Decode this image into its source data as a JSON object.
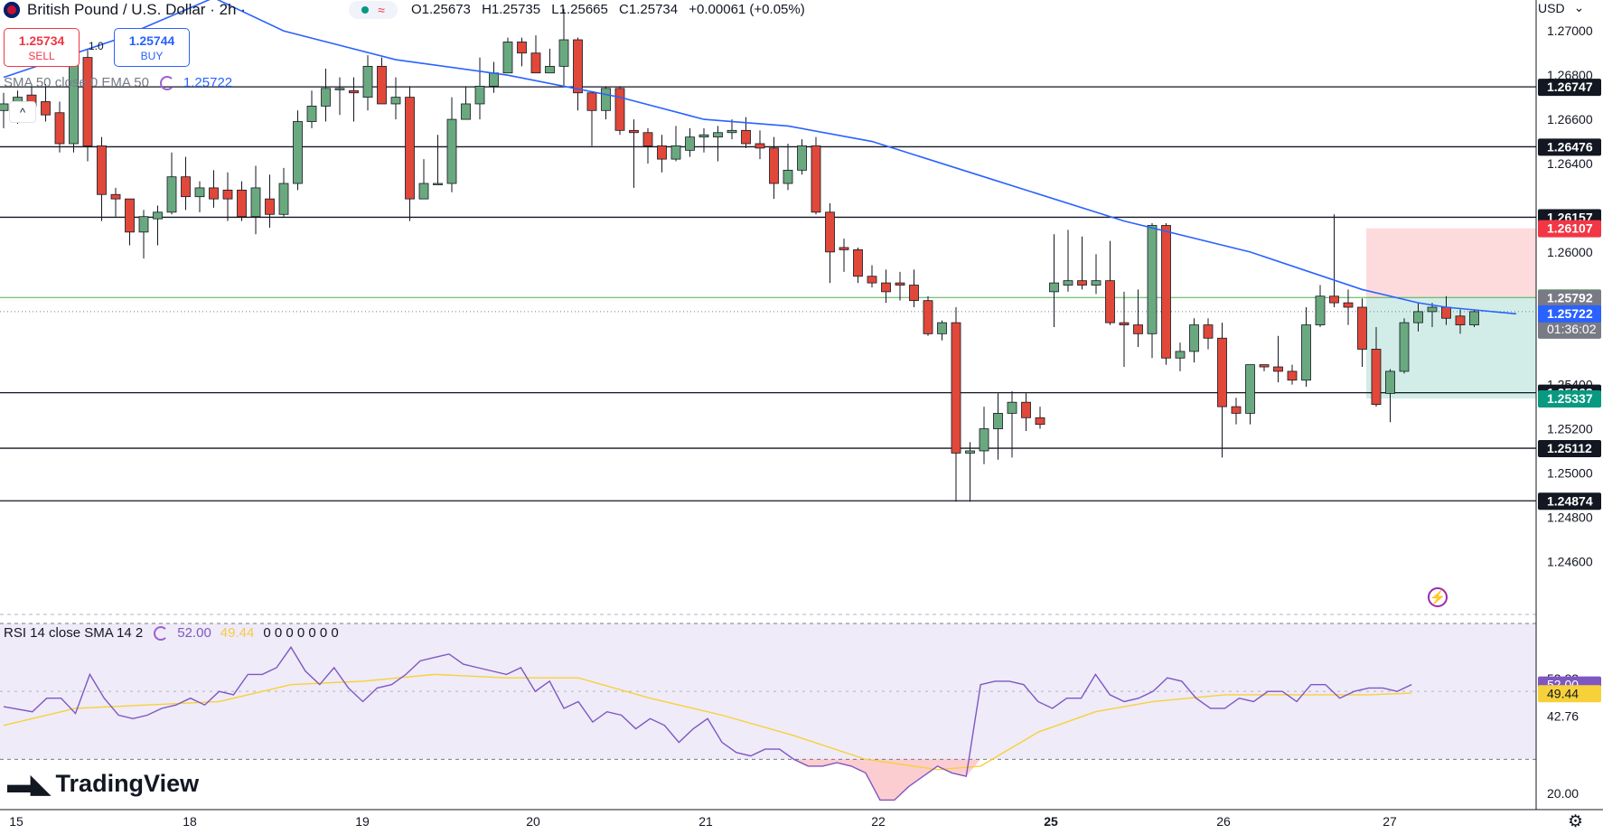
{
  "header": {
    "symbol": "British Pound / U.S. Dollar · 2h ·",
    "open": "O1.25673",
    "high": "H1.25735",
    "low": "L1.25665",
    "close": "C1.25734",
    "change": "+0.00061 (+0.05%)",
    "pill_glyph": "≈",
    "sell_price": "1.25734",
    "sell_label": "SELL",
    "buy_price": "1.25744",
    "buy_label": "BUY",
    "qty": "1.0",
    "currency": "USD",
    "collapse_glyph": "^"
  },
  "indicators": {
    "sma_label": "SMA 50 close 0 EMA 50",
    "sma_value": "1.25722",
    "rsi_label": "RSI 14 close SMA 14 2",
    "rsi_value": "52.00",
    "rsi_sma_value": "49.44",
    "rsi_zeros": "0 0 0 0 0 0 0"
  },
  "brand": "TradingView",
  "chart_data": {
    "type": "candlestick",
    "price_axis_ticks": [
      "1.27000",
      "1.26800",
      "1.26600",
      "1.26400",
      "1.26000",
      "1.25400",
      "1.25200",
      "1.25000",
      "1.24800",
      "1.24600"
    ],
    "price_ylim": [
      1.2436,
      1.2714
    ],
    "time_labels": [
      "15",
      "18",
      "19",
      "20",
      "21",
      "22",
      "25",
      "26",
      "27"
    ],
    "horizontal_levels": [
      1.26747,
      1.26476,
      1.26157,
      1.25363,
      1.25112,
      1.24874
    ],
    "price_tags": [
      {
        "value": 1.26747,
        "text": "1.26747",
        "color": "#131722"
      },
      {
        "value": 1.26476,
        "text": "1.26476",
        "color": "#131722"
      },
      {
        "value": 1.26157,
        "text": "1.26157",
        "color": "#131722"
      },
      {
        "value": 1.26107,
        "text": "1.26107",
        "color": "#f23645"
      },
      {
        "value": 1.25794,
        "text": "1.25794",
        "color": "#4caf50"
      },
      {
        "value": 1.25792,
        "text": "1.25792",
        "color": "#787b86"
      },
      {
        "value": 1.25734,
        "text": "1.25734",
        "color": "#787b86",
        "sub": "01:36:02"
      },
      {
        "value": 1.25722,
        "text": "1.25722",
        "color": "#2962ff"
      },
      {
        "value": 1.25363,
        "text": "1.25363",
        "color": "#131722"
      },
      {
        "value": 1.25337,
        "text": "1.25337",
        "color": "#089981"
      },
      {
        "value": 1.25112,
        "text": "1.25112",
        "color": "#131722"
      },
      {
        "value": 1.24874,
        "text": "1.24874",
        "color": "#131722"
      }
    ],
    "position_box": {
      "stop": 1.26107,
      "entry": 1.25794,
      "target": 1.25337
    },
    "candles": [
      [
        1.2664,
        1.2672,
        1.2656,
        1.2667
      ],
      [
        1.2667,
        1.2673,
        1.2658,
        1.267
      ],
      [
        1.2671,
        1.2676,
        1.2664,
        1.2666
      ],
      [
        1.2668,
        1.2676,
        1.2659,
        1.2662
      ],
      [
        1.2663,
        1.2668,
        1.2645,
        1.2649
      ],
      [
        1.2649,
        1.269,
        1.2645,
        1.2688
      ],
      [
        1.2688,
        1.2692,
        1.2641,
        1.2648
      ],
      [
        1.2648,
        1.2652,
        1.2614,
        1.2626
      ],
      [
        1.2626,
        1.2629,
        1.2616,
        1.2624
      ],
      [
        1.2624,
        1.2624,
        1.2603,
        1.2609
      ],
      [
        1.2609,
        1.2619,
        1.2597,
        1.2616
      ],
      [
        1.2615,
        1.2621,
        1.2603,
        1.2618
      ],
      [
        1.2618,
        1.2645,
        1.2617,
        1.2634
      ],
      [
        1.2634,
        1.2643,
        1.2619,
        1.2625
      ],
      [
        1.2625,
        1.2632,
        1.2618,
        1.2629
      ],
      [
        1.2629,
        1.2637,
        1.262,
        1.2624
      ],
      [
        1.2628,
        1.2636,
        1.2614,
        1.2624
      ],
      [
        1.2628,
        1.2632,
        1.2614,
        1.2616
      ],
      [
        1.2616,
        1.2639,
        1.2608,
        1.2629
      ],
      [
        1.2624,
        1.2635,
        1.2611,
        1.2617
      ],
      [
        1.2617,
        1.2638,
        1.2616,
        1.2631
      ],
      [
        1.2631,
        1.2664,
        1.2628,
        1.2659
      ],
      [
        1.2659,
        1.2673,
        1.2656,
        1.2666
      ],
      [
        1.2666,
        1.2683,
        1.2659,
        1.2674
      ],
      [
        1.2674,
        1.2679,
        1.2662,
        1.2674
      ],
      [
        1.2673,
        1.2679,
        1.2659,
        1.2672
      ],
      [
        1.267,
        1.2689,
        1.2664,
        1.2684
      ],
      [
        1.2684,
        1.2688,
        1.2667,
        1.2667
      ],
      [
        1.2667,
        1.2679,
        1.266,
        1.267
      ],
      [
        1.267,
        1.2675,
        1.2614,
        1.2624
      ],
      [
        1.2624,
        1.2642,
        1.2624,
        1.2631
      ],
      [
        1.2631,
        1.2653,
        1.2631,
        1.2631
      ],
      [
        1.2631,
        1.267,
        1.2627,
        1.266
      ],
      [
        1.266,
        1.2675,
        1.266,
        1.2667
      ],
      [
        1.2667,
        1.2688,
        1.266,
        1.2675
      ],
      [
        1.2675,
        1.2686,
        1.2672,
        1.2681
      ],
      [
        1.2681,
        1.2697,
        1.2681,
        1.2695
      ],
      [
        1.2695,
        1.2697,
        1.2684,
        1.269
      ],
      [
        1.269,
        1.2698,
        1.2682,
        1.2681
      ],
      [
        1.2681,
        1.2692,
        1.2681,
        1.2684
      ],
      [
        1.2684,
        1.271,
        1.2675,
        1.2696
      ],
      [
        1.2696,
        1.2697,
        1.2664,
        1.2672
      ],
      [
        1.2672,
        1.2672,
        1.2648,
        1.2664
      ],
      [
        1.2664,
        1.2675,
        1.266,
        1.2674
      ],
      [
        1.2674,
        1.2675,
        1.2653,
        1.2655
      ],
      [
        1.2655,
        1.266,
        1.2629,
        1.2654
      ],
      [
        1.2654,
        1.2656,
        1.264,
        1.2648
      ],
      [
        1.2648,
        1.2653,
        1.2636,
        1.2642
      ],
      [
        1.2642,
        1.2657,
        1.2641,
        1.2648
      ],
      [
        1.2646,
        1.2656,
        1.2643,
        1.2652
      ],
      [
        1.2652,
        1.2656,
        1.2645,
        1.2653
      ],
      [
        1.2652,
        1.2657,
        1.2641,
        1.2654
      ],
      [
        1.2654,
        1.266,
        1.2651,
        1.2655
      ],
      [
        1.2655,
        1.2661,
        1.2647,
        1.2649
      ],
      [
        1.2649,
        1.2655,
        1.2642,
        1.2647
      ],
      [
        1.2647,
        1.2652,
        1.2624,
        1.2631
      ],
      [
        1.2631,
        1.2649,
        1.2628,
        1.2637
      ],
      [
        1.2637,
        1.2651,
        1.2635,
        1.2648
      ],
      [
        1.2648,
        1.2652,
        1.2617,
        1.2618
      ],
      [
        1.2618,
        1.2622,
        1.2586,
        1.26
      ],
      [
        1.2602,
        1.2606,
        1.2591,
        1.2601
      ],
      [
        1.2601,
        1.2602,
        1.2586,
        1.2589
      ],
      [
        1.2589,
        1.2594,
        1.2584,
        1.2586
      ],
      [
        1.2586,
        1.2592,
        1.2577,
        1.2582
      ],
      [
        1.2586,
        1.2591,
        1.2578,
        1.2585
      ],
      [
        1.2585,
        1.2592,
        1.2575,
        1.2578
      ],
      [
        1.2578,
        1.258,
        1.2562,
        1.2563
      ],
      [
        1.2563,
        1.2569,
        1.256,
        1.2568
      ],
      [
        1.2568,
        1.2575,
        1.2487,
        1.2509
      ],
      [
        1.2509,
        1.2514,
        1.2487,
        1.251
      ],
      [
        1.251,
        1.253,
        1.2504,
        1.252
      ],
      [
        1.252,
        1.2536,
        1.2506,
        1.2527
      ],
      [
        1.2527,
        1.2537,
        1.2507,
        1.2532
      ],
      [
        1.2532,
        1.2536,
        1.2519,
        1.2525
      ],
      [
        1.2525,
        1.253,
        1.252,
        1.2522
      ],
      [
        1.2582,
        1.2608,
        1.2566,
        1.2586
      ],
      [
        1.2585,
        1.261,
        1.2582,
        1.2587
      ],
      [
        1.2587,
        1.2607,
        1.2583,
        1.2585
      ],
      [
        1.2585,
        1.2599,
        1.2581,
        1.2587
      ],
      [
        1.2587,
        1.2605,
        1.2567,
        1.2568
      ],
      [
        1.2568,
        1.2582,
        1.2548,
        1.2567
      ],
      [
        1.2567,
        1.2583,
        1.2557,
        1.2563
      ],
      [
        1.2563,
        1.2613,
        1.2552,
        1.2612
      ],
      [
        1.2612,
        1.2613,
        1.2549,
        1.2552
      ],
      [
        1.2552,
        1.2559,
        1.2546,
        1.2555
      ],
      [
        1.2555,
        1.257,
        1.255,
        1.2567
      ],
      [
        1.2567,
        1.257,
        1.2556,
        1.2561
      ],
      [
        1.2561,
        1.2568,
        1.2507,
        1.253
      ],
      [
        1.253,
        1.2534,
        1.2522,
        1.2527
      ],
      [
        1.2527,
        1.2549,
        1.2522,
        1.2549
      ],
      [
        1.2549,
        1.2549,
        1.2546,
        1.2548
      ],
      [
        1.2548,
        1.2562,
        1.2541,
        1.2546
      ],
      [
        1.2546,
        1.2549,
        1.254,
        1.2542
      ],
      [
        1.2542,
        1.2575,
        1.2539,
        1.2567
      ],
      [
        1.2567,
        1.2585,
        1.2566,
        1.258
      ],
      [
        1.258,
        1.2617,
        1.2575,
        1.2577
      ],
      [
        1.2577,
        1.2583,
        1.2567,
        1.2575
      ],
      [
        1.2575,
        1.2579,
        1.2548,
        1.2556
      ],
      [
        1.2556,
        1.2566,
        1.253,
        1.2531
      ],
      [
        1.2536,
        1.2547,
        1.2523,
        1.2546
      ],
      [
        1.2546,
        1.257,
        1.2545,
        1.2568
      ],
      [
        1.2568,
        1.2577,
        1.2564,
        1.2573
      ],
      [
        1.2573,
        1.2577,
        1.2566,
        1.2575
      ],
      [
        1.2575,
        1.258,
        1.2567,
        1.257
      ],
      [
        1.2571,
        1.2574,
        1.2563,
        1.2567
      ],
      [
        1.2567,
        1.2574,
        1.2566,
        1.2573
      ]
    ],
    "sma50": [
      [
        0,
        1.2679
      ],
      [
        8,
        1.2696
      ],
      [
        15,
        1.2715
      ],
      [
        20,
        1.27
      ],
      [
        28,
        1.2687
      ],
      [
        36,
        1.268
      ],
      [
        44,
        1.267
      ],
      [
        50,
        1.266
      ],
      [
        56,
        1.2657
      ],
      [
        62,
        1.265
      ],
      [
        70,
        1.2634
      ],
      [
        80,
        1.2614
      ],
      [
        89,
        1.26
      ],
      [
        97,
        1.2583
      ],
      [
        101,
        1.2577
      ],
      [
        103,
        1.2575
      ],
      [
        108,
        1.2572
      ]
    ],
    "rsi": {
      "ylim": [
        16,
        70
      ],
      "levels": [
        70,
        30
      ],
      "tick_labels": [
        "53.83",
        "52.00",
        "49.44",
        "42.76",
        "20.00"
      ],
      "rsi_points": [
        [
          0,
          45.5
        ],
        [
          2,
          44
        ],
        [
          3,
          48
        ],
        [
          4,
          48
        ],
        [
          5,
          43.5
        ],
        [
          6,
          55
        ],
        [
          7,
          48
        ],
        [
          8,
          43
        ],
        [
          9,
          42
        ],
        [
          10,
          43
        ],
        [
          11,
          45
        ],
        [
          12,
          46
        ],
        [
          13,
          48
        ],
        [
          14,
          46
        ],
        [
          15,
          50
        ],
        [
          16,
          49
        ],
        [
          17,
          55
        ],
        [
          18,
          55
        ],
        [
          19,
          57
        ],
        [
          20,
          63
        ],
        [
          21,
          56
        ],
        [
          22,
          52
        ],
        [
          23,
          57
        ],
        [
          24,
          51
        ],
        [
          25,
          47
        ],
        [
          26,
          51
        ],
        [
          27,
          52
        ],
        [
          28,
          55
        ],
        [
          29,
          59
        ],
        [
          30,
          60
        ],
        [
          31,
          61
        ],
        [
          32,
          58
        ],
        [
          33,
          57
        ],
        [
          34,
          56
        ],
        [
          35,
          55
        ],
        [
          36,
          57
        ],
        [
          37,
          50
        ],
        [
          38,
          53
        ],
        [
          39,
          45
        ],
        [
          40,
          47
        ],
        [
          41,
          41
        ],
        [
          42,
          44
        ],
        [
          43,
          43
        ],
        [
          44,
          39
        ],
        [
          45,
          42
        ],
        [
          46,
          40
        ],
        [
          47,
          35
        ],
        [
          48,
          39
        ],
        [
          49,
          42
        ],
        [
          50,
          35
        ],
        [
          51,
          32
        ],
        [
          52,
          31
        ],
        [
          53,
          33
        ],
        [
          54,
          33
        ],
        [
          55,
          30
        ],
        [
          56,
          28
        ],
        [
          57,
          28
        ],
        [
          58,
          29
        ],
        [
          59,
          28
        ],
        [
          60,
          26
        ],
        [
          61,
          18
        ],
        [
          62,
          18
        ],
        [
          63,
          22
        ],
        [
          64,
          25
        ],
        [
          65,
          28
        ],
        [
          66,
          26
        ],
        [
          67,
          25
        ],
        [
          68,
          52
        ],
        [
          69,
          53
        ],
        [
          70,
          53
        ],
        [
          71,
          52
        ],
        [
          72,
          47
        ],
        [
          73,
          45
        ],
        [
          74,
          48
        ],
        [
          75,
          48
        ],
        [
          76,
          55
        ],
        [
          77,
          49
        ],
        [
          78,
          47
        ],
        [
          79,
          48
        ],
        [
          80,
          50
        ],
        [
          81,
          54
        ],
        [
          82,
          53
        ],
        [
          83,
          48
        ],
        [
          84,
          45
        ],
        [
          85,
          45
        ],
        [
          86,
          48
        ],
        [
          87,
          47
        ],
        [
          88,
          50
        ],
        [
          89,
          50
        ],
        [
          90,
          47
        ],
        [
          91,
          52
        ],
        [
          92,
          52
        ],
        [
          93,
          48
        ],
        [
          94,
          50
        ],
        [
          95,
          51
        ],
        [
          96,
          51
        ],
        [
          97,
          50
        ],
        [
          98,
          52
        ]
      ],
      "sma_points": [
        [
          0,
          40
        ],
        [
          5,
          45
        ],
        [
          10,
          46
        ],
        [
          15,
          47
        ],
        [
          20,
          52
        ],
        [
          25,
          53
        ],
        [
          30,
          55
        ],
        [
          35,
          54
        ],
        [
          40,
          54
        ],
        [
          45,
          48
        ],
        [
          50,
          43
        ],
        [
          55,
          37
        ],
        [
          60,
          30
        ],
        [
          65,
          27
        ],
        [
          68,
          28
        ],
        [
          72,
          38
        ],
        [
          76,
          44
        ],
        [
          80,
          47
        ],
        [
          85,
          49
        ],
        [
          90,
          49
        ],
        [
          95,
          49
        ],
        [
          98,
          49.5
        ]
      ]
    }
  }
}
